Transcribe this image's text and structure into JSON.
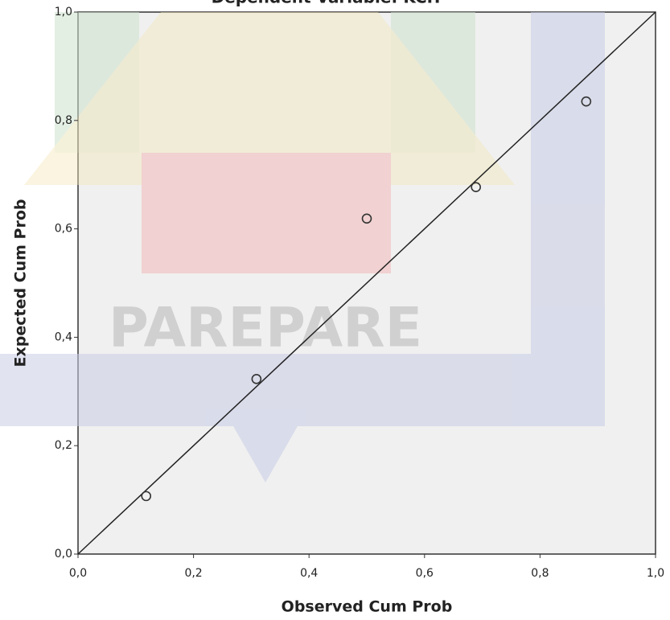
{
  "chart_data": {
    "type": "scatter",
    "title": "Dependent Variable: KCH",
    "x_label": "Observed Cum Prob",
    "y_label": "Expected Cum Prob",
    "x": [
      0.118,
      0.309,
      0.5,
      0.689,
      0.88
    ],
    "values": [
      0.107,
      0.323,
      0.619,
      0.677,
      0.835
    ],
    "color": "#333333",
    "xlim": [
      0,
      1
    ],
    "ylim": [
      0,
      1
    ],
    "xticks": [
      {
        "value": 0,
        "label": "0,0"
      },
      {
        "value": 0.2,
        "label": "0,2"
      },
      {
        "value": 0.4,
        "label": "0,4"
      },
      {
        "value": 0.6,
        "label": "0,6"
      },
      {
        "value": 0.8,
        "label": "0,8"
      },
      {
        "value": 1,
        "label": "1,0"
      }
    ],
    "yticks": [
      {
        "value": 0,
        "label": "0,0"
      },
      {
        "value": 0.2,
        "label": "0,2"
      },
      {
        "value": 0.4,
        "label": "0,4"
      },
      {
        "value": 0.6,
        "label": "0,6"
      },
      {
        "value": 0.8,
        "label": "0,8"
      },
      {
        "value": 1,
        "label": "1,0"
      }
    ],
    "reference_line": true
  },
  "watermark": "PAREPARE"
}
